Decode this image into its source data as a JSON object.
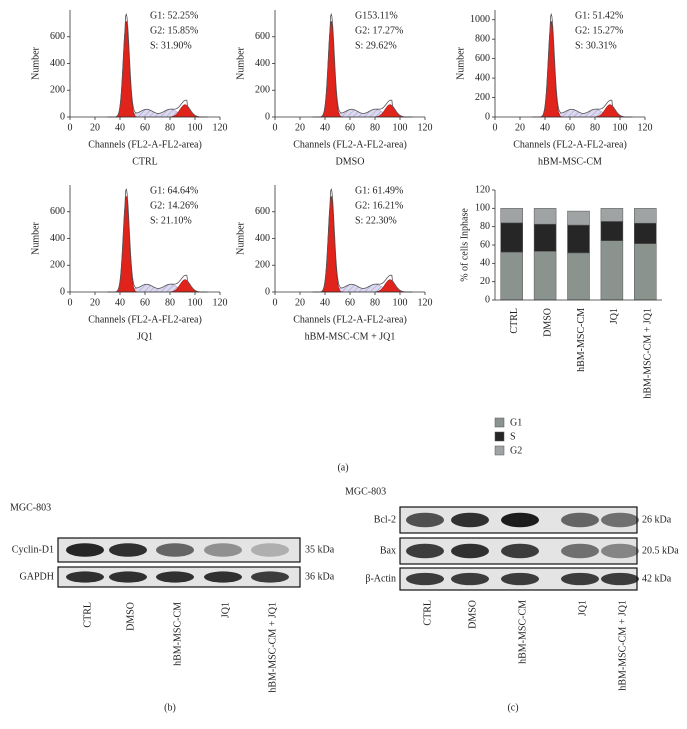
{
  "panel_a_label": "(a)",
  "flow_panels": [
    {
      "title": "CTRL",
      "annotations": [
        "G1: 52.25%",
        "G2: 15.85%",
        "S: 31.90%"
      ],
      "x_label": "Channels (FL2-A-FL2-area)",
      "y_label": "Number",
      "xlim": [
        0,
        120
      ],
      "xticks": [
        0,
        20,
        40,
        60,
        80,
        100,
        120
      ],
      "ylim": [
        0,
        800
      ],
      "yticks": [
        0,
        200,
        400,
        600
      ]
    },
    {
      "title": "DMSO",
      "annotations": [
        "G153.11%",
        "G2: 17.27%",
        "S: 29.62%"
      ],
      "x_label": "Channels (FL2-A-FL2-area)",
      "y_label": "Number",
      "xlim": [
        0,
        120
      ],
      "xticks": [
        0,
        20,
        40,
        60,
        80,
        100,
        120
      ],
      "ylim": [
        0,
        800
      ],
      "yticks": [
        0,
        200,
        400,
        600
      ]
    },
    {
      "title": "hBM-MSC-CM",
      "annotations": [
        "G1: 51.42%",
        "G2: 15.27%",
        "S: 30.31%"
      ],
      "x_label": "Channels (FL2-A-FL2-area)",
      "y_label": "Number",
      "xlim": [
        0,
        120
      ],
      "xticks": [
        0,
        20,
        40,
        60,
        80,
        100,
        120
      ],
      "ylim": [
        0,
        1100
      ],
      "yticks": [
        0,
        200,
        400,
        600,
        800,
        1000
      ]
    },
    {
      "title": "JQ1",
      "annotations": [
        "G1: 64.64%",
        "G2: 14.26%",
        "S: 21.10%"
      ],
      "x_label": "Channels (FL2-A-FL2-area)",
      "y_label": "Number",
      "xlim": [
        0,
        120
      ],
      "xticks": [
        0,
        20,
        40,
        60,
        80,
        100,
        120
      ],
      "ylim": [
        0,
        800
      ],
      "yticks": [
        0,
        200,
        400,
        600
      ]
    },
    {
      "title": "hBM-MSC-CM + JQ1",
      "annotations": [
        "G1: 61.49%",
        "G2: 16.21%",
        "S: 22.30%"
      ],
      "x_label": "Channels (FL2-A-FL2-area)",
      "y_label": "Number",
      "xlim": [
        0,
        120
      ],
      "xticks": [
        0,
        20,
        40,
        60,
        80,
        100,
        120
      ],
      "ylim": [
        0,
        800
      ],
      "yticks": [
        0,
        200,
        400,
        600
      ]
    }
  ],
  "chart_data": {
    "type": "bar",
    "stacked": true,
    "y_label": "% of cells Inphase",
    "categories": [
      "CTRL",
      "DMSO",
      "hBM-MSC-CM",
      "JQ1",
      "hBM-MSC-CM + JQ1"
    ],
    "series": [
      {
        "name": "G1",
        "color": "#8a938e",
        "values": [
          52.25,
          53.11,
          51.42,
          64.64,
          61.49
        ]
      },
      {
        "name": "S",
        "color": "#262626",
        "values": [
          31.9,
          29.62,
          30.31,
          21.1,
          22.3
        ]
      },
      {
        "name": "G2",
        "color": "#9fa3a3",
        "values": [
          15.85,
          17.27,
          15.27,
          14.26,
          16.21
        ]
      }
    ],
    "ylim": [
      0,
      120
    ],
    "yticks": [
      0,
      20,
      40,
      60,
      80,
      100,
      120
    ]
  },
  "blot_b": {
    "label": "(b)",
    "cell_line": "MGC-803",
    "rows": [
      {
        "name": "Cyclin-D1",
        "size": "35 kDa"
      },
      {
        "name": "GAPDH",
        "size": "36 kDa"
      }
    ],
    "lanes": [
      "CTRL",
      "DMSO",
      "hBM-MSC-CM",
      "JQ1",
      "hBM-MSC-CM + JQ1"
    ]
  },
  "blot_c": {
    "label": "(c)",
    "cell_line": "MGC-803",
    "rows": [
      {
        "name": "Bcl-2",
        "size": "26 kDa"
      },
      {
        "name": "Bax",
        "size": "20.5 kDa"
      },
      {
        "name": "β-Actin",
        "size": "42 kDa"
      }
    ],
    "lanes": [
      "CTRL",
      "DMSO",
      "hBM-MSC-CM",
      "JQ1",
      "hBM-MSC-CM + JQ1"
    ]
  }
}
